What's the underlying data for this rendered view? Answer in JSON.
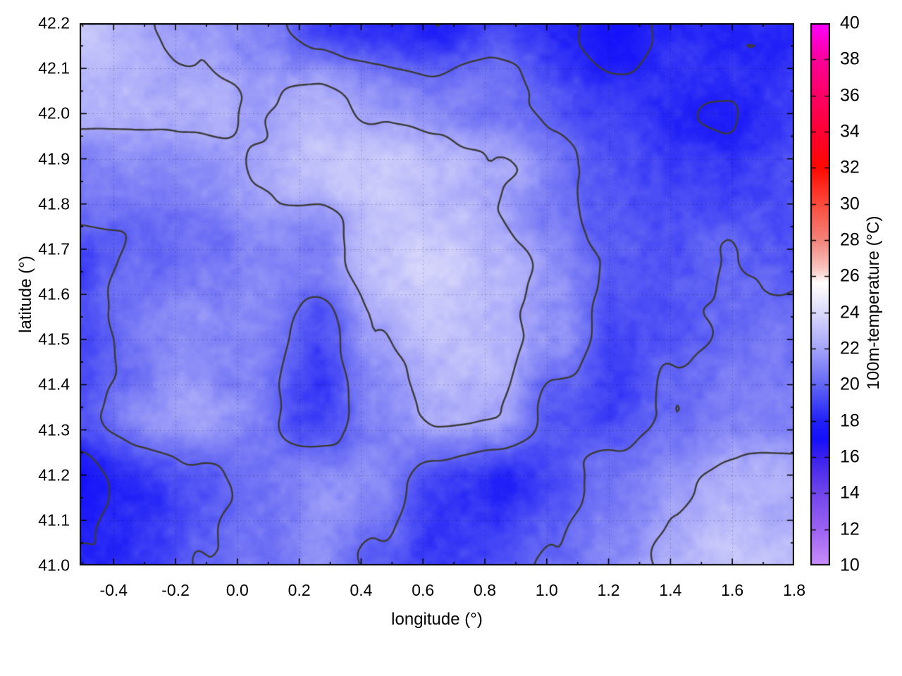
{
  "chart_data": {
    "type": "heatmap",
    "title": "",
    "xlabel": "longitude (°)",
    "ylabel": "latitude (°)",
    "colorbar_label": "100m-temperature (°C)",
    "x_axis": {
      "range": [
        -0.51,
        1.8
      ],
      "tick_values": [
        -0.4,
        -0.2,
        0.0,
        0.2,
        0.4,
        0.6,
        0.8,
        1.0,
        1.2,
        1.4,
        1.6,
        1.8
      ],
      "tick_labels": [
        "-0.4",
        "-0.2",
        "0.0",
        "0.2",
        "0.4",
        "0.6",
        "0.8",
        "1.0",
        "1.2",
        "1.4",
        "1.6",
        "1.8"
      ],
      "minor_step": 0.1
    },
    "y_axis": {
      "range": [
        41.0,
        42.2
      ],
      "tick_values": [
        41.0,
        41.1,
        41.2,
        41.3,
        41.4,
        41.5,
        41.6,
        41.7,
        41.8,
        41.9,
        42.0,
        42.1,
        42.2
      ],
      "tick_labels": [
        "41.0",
        "41.1",
        "41.2",
        "41.3",
        "41.4",
        "41.5",
        "41.6",
        "41.7",
        "41.8",
        "41.9",
        "42.0",
        "42.1",
        "42.2"
      ],
      "minor_step": 0.05
    },
    "colorbar": {
      "range": [
        10,
        40
      ],
      "tick_values": [
        10,
        12,
        14,
        16,
        18,
        20,
        22,
        24,
        26,
        28,
        30,
        32,
        34,
        36,
        38,
        40
      ],
      "tick_labels": [
        "10",
        "12",
        "14",
        "16",
        "18",
        "20",
        "22",
        "24",
        "26",
        "28",
        "30",
        "32",
        "34",
        "36",
        "38",
        "40"
      ],
      "palette_stops": [
        [
          10,
          "#c98cf9"
        ],
        [
          12,
          "#9c62f2"
        ],
        [
          14,
          "#7045eb"
        ],
        [
          16,
          "#3a20ee"
        ],
        [
          17,
          "#1410fb"
        ],
        [
          18,
          "#2222f7"
        ],
        [
          20,
          "#6467f4"
        ],
        [
          22,
          "#a5a5f9"
        ],
        [
          24,
          "#dbdbfc"
        ],
        [
          25,
          "#f5f2fa"
        ],
        [
          25.6,
          "#ffffff"
        ],
        [
          26.4,
          "#f9c6c2"
        ],
        [
          28,
          "#f2837a"
        ],
        [
          30,
          "#fd4b3c"
        ],
        [
          32,
          "#ff0800"
        ],
        [
          34,
          "#ff0033"
        ],
        [
          36,
          "#ff0066"
        ],
        [
          38,
          "#fa0099"
        ],
        [
          40,
          "#ff00ff"
        ]
      ]
    },
    "contour_levels": [
      18,
      20,
      22,
      24
    ],
    "style": {
      "contour_color": "#3a3a3a",
      "grid_dotted": true,
      "tick_direction": "in",
      "background": "#ffffff"
    },
    "grid": {
      "comment": "coarse estimate of plotted 100m-temperature field, degC",
      "lon": [
        -0.51,
        -0.3175,
        -0.125,
        0.0675,
        0.26,
        0.4525,
        0.645,
        0.8375,
        1.03,
        1.2225,
        1.415,
        1.6075,
        1.8
      ],
      "lat": [
        42.2,
        42.0286,
        41.8571,
        41.6857,
        41.5143,
        41.3429,
        41.1714,
        41.0
      ],
      "values_degC": [
        [
          22.8,
          22.6,
          22.0,
          21.0,
          19.5,
          18.0,
          17.8,
          18.8,
          18.0,
          17.8,
          18.2,
          17.8,
          17.5
        ],
        [
          22.2,
          22.4,
          22.6,
          21.8,
          22.3,
          21.0,
          20.3,
          19.8,
          19.3,
          18.8,
          18.6,
          18.4,
          19.0
        ],
        [
          20.8,
          21.2,
          21.6,
          22.1,
          22.7,
          23.1,
          22.6,
          22.0,
          21.0,
          19.8,
          19.2,
          19.0,
          19.6
        ],
        [
          19.6,
          20.3,
          20.8,
          21.2,
          21.0,
          23.3,
          23.6,
          23.0,
          21.6,
          20.2,
          19.6,
          20.3,
          19.8
        ],
        [
          19.9,
          20.6,
          21.1,
          21.3,
          19.6,
          21.6,
          22.9,
          22.7,
          21.3,
          18.8,
          19.4,
          20.2,
          20.6
        ],
        [
          19.7,
          20.9,
          21.3,
          21.1,
          19.0,
          21.2,
          22.6,
          22.4,
          19.6,
          18.6,
          19.8,
          20.9,
          21.1
        ],
        [
          17.6,
          18.2,
          19.2,
          20.6,
          21.9,
          21.1,
          18.9,
          18.2,
          19.1,
          20.7,
          21.6,
          22.3,
          22.6
        ],
        [
          17.4,
          18.1,
          19.6,
          20.9,
          21.9,
          19.6,
          18.3,
          18.9,
          20.3,
          21.5,
          22.2,
          22.7,
          23.1
        ]
      ]
    }
  }
}
